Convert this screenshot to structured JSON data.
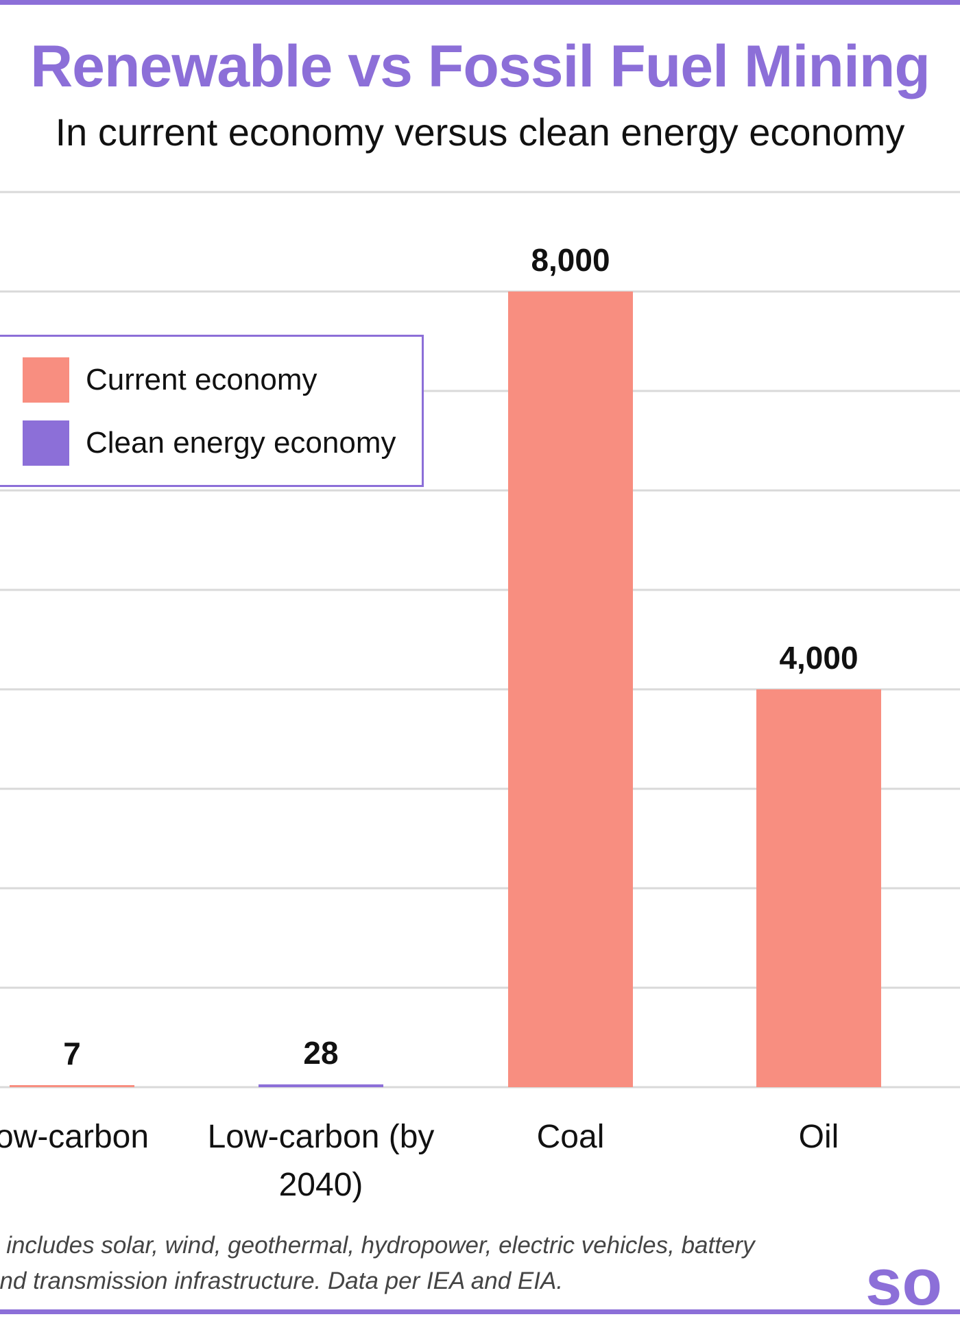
{
  "chart_data": {
    "type": "bar",
    "title": "Renewable vs Fossil Fuel Mining",
    "subtitle": "In current economy versus clean energy economy",
    "categories": [
      "Low-carbon",
      "Low-carbon (by 2040)",
      "Coal",
      "Oil"
    ],
    "category_labels_visible": [
      "ow-carbon",
      "Low-carbon (by 2040)",
      "Coal",
      "Oil"
    ],
    "series": [
      {
        "name": "Current economy",
        "color": "#f88e80",
        "values": [
          7,
          null,
          8000,
          4000
        ]
      },
      {
        "name": "Clean energy economy",
        "color": "#8c6fd8",
        "values": [
          null,
          28,
          null,
          null
        ]
      }
    ],
    "data_labels": [
      "7",
      "28",
      "8,000",
      "4,000"
    ],
    "ylim": [
      0,
      9000
    ],
    "grid": true,
    "legend_placement": "top-left"
  },
  "legend": {
    "items": [
      {
        "label": "Current economy",
        "color": "#f88e80"
      },
      {
        "label": "Clean energy economy",
        "color": "#8c6fd8"
      }
    ]
  },
  "footnote": {
    "line1": "g includes solar, wind, geothermal, hydropower, electric vehicles, battery",
    "line2": "and transmission infrastructure. Data per IEA and EIA."
  },
  "logo": {
    "text": "so"
  },
  "colors": {
    "accent": "#8c6fd8",
    "current": "#f88e80",
    "grid": "#d9d9d9"
  }
}
